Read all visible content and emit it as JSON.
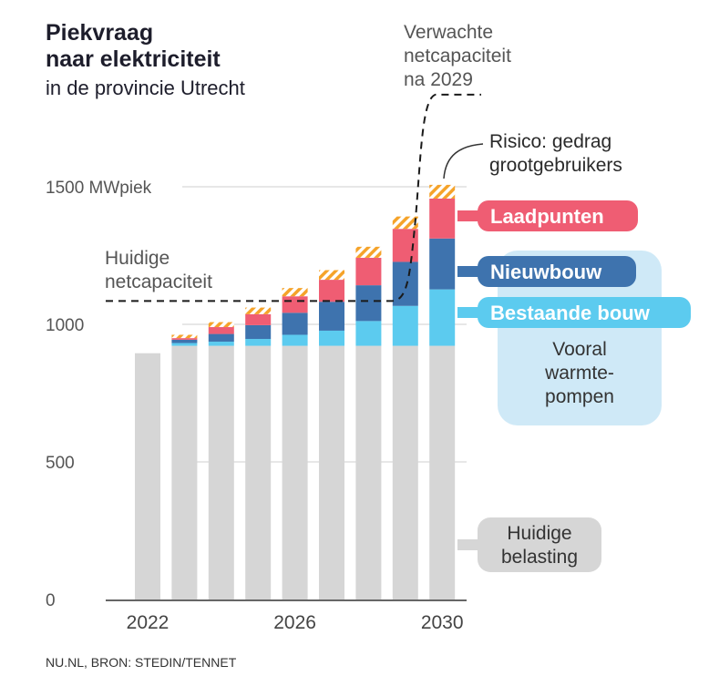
{
  "title_line1": "Piekvraag",
  "title_line2": "naar elektriciteit",
  "subtitle": "in de provincie Utrecht",
  "source": "NU.NL, BRON: STEDIN/TENNET",
  "colors": {
    "base": "#d6d6d6",
    "existing": "#5ccbef",
    "new": "#3e73ae",
    "charging": "#ef5d73",
    "risk_a": "#f5a32a",
    "risk_b": "#ffffff",
    "note_bg": "#cfe9f7",
    "label_bg_gray": "#d6d6d6"
  },
  "annotations": {
    "current_capacity_line1": "Huidige",
    "current_capacity_line2": "netcapaciteit",
    "expected_capacity_line1": "Verwachte",
    "expected_capacity_line2": "netcapaciteit",
    "expected_capacity_line3": "na 2029",
    "risk_line1": "Risico: gedrag",
    "risk_line2": "grootgebruikers",
    "note_line1": "Vooral",
    "note_line2": "warmte-",
    "note_line3": "pompen"
  },
  "legend": {
    "charging": "Laadpunten",
    "new": "Nieuwbouw",
    "existing": "Bestaande bouw",
    "base_line1": "Huidige",
    "base_line2": "belasting"
  },
  "chart_data": {
    "type": "bar",
    "stacked": true,
    "ylim": [
      0,
      1600
    ],
    "yticks": [
      {
        "value": 0,
        "label": "0"
      },
      {
        "value": 500,
        "label": "500"
      },
      {
        "value": 1000,
        "label": "1000"
      },
      {
        "value": 1500,
        "label": "1500 MWpiek"
      }
    ],
    "xtick_labels": [
      {
        "index": 0,
        "label": "2022"
      },
      {
        "index": 4,
        "label": "2026"
      },
      {
        "index": 8,
        "label": "2030"
      }
    ],
    "categories": [
      "2022",
      "2023",
      "2024",
      "2025",
      "2026",
      "2027",
      "2028",
      "2029",
      "2030"
    ],
    "series": [
      {
        "key": "base",
        "name": "Huidige belasting",
        "values": [
          895,
          922,
          922,
          922,
          922,
          922,
          922,
          922,
          922
        ]
      },
      {
        "key": "existing",
        "name": "Bestaande bouw",
        "values": [
          0,
          10,
          15,
          25,
          40,
          55,
          90,
          145,
          205
        ]
      },
      {
        "key": "new",
        "name": "Nieuwbouw",
        "values": [
          0,
          12,
          28,
          50,
          80,
          105,
          130,
          160,
          185
        ]
      },
      {
        "key": "charging",
        "name": "Laadpunten",
        "values": [
          0,
          6,
          25,
          40,
          60,
          80,
          100,
          120,
          145
        ]
      },
      {
        "key": "risk",
        "name": "Risico: gedrag grootgebruikers",
        "values": [
          0,
          12,
          18,
          24,
          30,
          35,
          40,
          45,
          50
        ]
      }
    ],
    "capacity_current": 1085,
    "capacity_expected": 1835,
    "capacity_step_year": "2029"
  }
}
